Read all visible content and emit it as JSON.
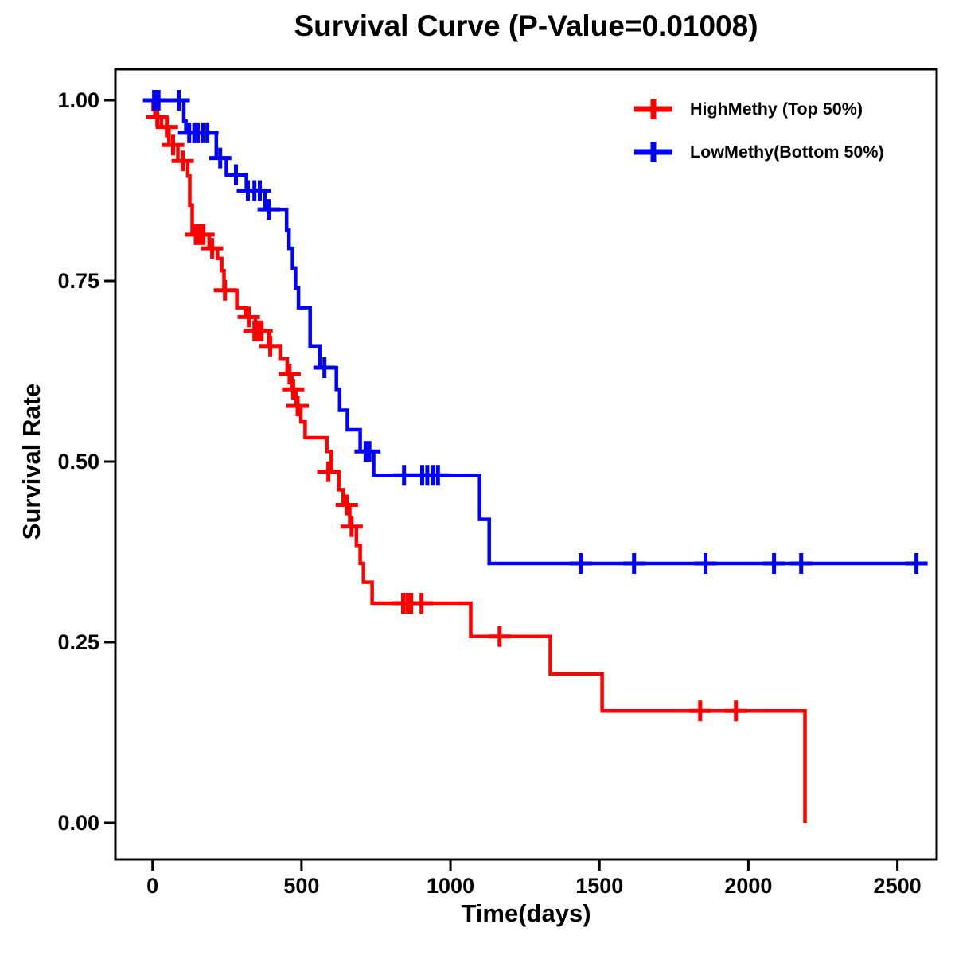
{
  "title": "Survival Curve (P-Value=0.01008)",
  "legend": {
    "items": [
      {
        "label": "HighMethy (Top 50%)",
        "color": "#FF0000"
      },
      {
        "label": "LowMethy(Bottom 50%)",
        "color": "#0000FF"
      }
    ]
  },
  "chart_data": {
    "type": "line",
    "subtype": "kaplan-meier-step",
    "title": "Survival Curve (P-Value=0.01008)",
    "p_value": 0.01008,
    "xlabel": "Time(days)",
    "ylabel": "Survival Rate",
    "xlim": [
      0,
      2630
    ],
    "ylim": [
      0,
      1.0
    ],
    "grid": false,
    "legend_position": "top-right",
    "x_ticks": {
      "values": [
        0,
        500,
        1000,
        1500,
        2000,
        2500
      ],
      "labels": [
        "0",
        "500",
        "1000",
        "1500",
        "2000",
        "2500"
      ]
    },
    "y_ticks": {
      "values": [
        0,
        0.25,
        0.5,
        0.75,
        1.0
      ],
      "labels": [
        "0.00",
        "0.25",
        "0.50",
        "0.75",
        "1.00"
      ]
    },
    "series": [
      {
        "name": "HighMethy (Top 50%)",
        "color": "#FF0000",
        "steps": [
          [
            0,
            1.0
          ],
          [
            2,
            0.987
          ],
          [
            8,
            0.977
          ],
          [
            30,
            0.963
          ],
          [
            55,
            0.938
          ],
          [
            85,
            0.916
          ],
          [
            118,
            0.895
          ],
          [
            125,
            0.855
          ],
          [
            133,
            0.814
          ],
          [
            190,
            0.795
          ],
          [
            218,
            0.781
          ],
          [
            232,
            0.764
          ],
          [
            240,
            0.737
          ],
          [
            283,
            0.713
          ],
          [
            312,
            0.7
          ],
          [
            345,
            0.681
          ],
          [
            390,
            0.66
          ],
          [
            428,
            0.643
          ],
          [
            452,
            0.621
          ],
          [
            468,
            0.6
          ],
          [
            482,
            0.577
          ],
          [
            498,
            0.555
          ],
          [
            512,
            0.533
          ],
          [
            585,
            0.514
          ],
          [
            600,
            0.486
          ],
          [
            625,
            0.461
          ],
          [
            640,
            0.44
          ],
          [
            662,
            0.41
          ],
          [
            684,
            0.384
          ],
          [
            697,
            0.359
          ],
          [
            708,
            0.333
          ],
          [
            737,
            0.304
          ],
          [
            1068,
            0.258
          ],
          [
            1335,
            0.206
          ],
          [
            1509,
            0.155
          ],
          [
            2190,
            0.0
          ]
        ],
        "censor_marks": [
          [
            16,
            0.977
          ],
          [
            48,
            0.963
          ],
          [
            69,
            0.938
          ],
          [
            101,
            0.916
          ],
          [
            145,
            0.814
          ],
          [
            158,
            0.814
          ],
          [
            171,
            0.814
          ],
          [
            200,
            0.795
          ],
          [
            243,
            0.737
          ],
          [
            323,
            0.7
          ],
          [
            342,
            0.681
          ],
          [
            354,
            0.681
          ],
          [
            366,
            0.681
          ],
          [
            395,
            0.66
          ],
          [
            460,
            0.621
          ],
          [
            472,
            0.6
          ],
          [
            487,
            0.577
          ],
          [
            590,
            0.486
          ],
          [
            652,
            0.44
          ],
          [
            668,
            0.41
          ],
          [
            841,
            0.304
          ],
          [
            855,
            0.304
          ],
          [
            868,
            0.304
          ],
          [
            903,
            0.304
          ],
          [
            1165,
            0.258
          ],
          [
            1838,
            0.155
          ],
          [
            1958,
            0.155
          ]
        ],
        "end_time": 2190,
        "ends_at_zero": true
      },
      {
        "name": "LowMethy(Bottom 50%)",
        "color": "#0000FF",
        "steps": [
          [
            0,
            1.0
          ],
          [
            105,
            0.971
          ],
          [
            112,
            0.955
          ],
          [
            214,
            0.92
          ],
          [
            248,
            0.897
          ],
          [
            315,
            0.875
          ],
          [
            377,
            0.849
          ],
          [
            450,
            0.82
          ],
          [
            458,
            0.795
          ],
          [
            470,
            0.768
          ],
          [
            480,
            0.74
          ],
          [
            490,
            0.713
          ],
          [
            529,
            0.66
          ],
          [
            561,
            0.63
          ],
          [
            617,
            0.6
          ],
          [
            628,
            0.571
          ],
          [
            654,
            0.544
          ],
          [
            697,
            0.514
          ],
          [
            742,
            0.481
          ],
          [
            1098,
            0.42
          ],
          [
            1130,
            0.359
          ]
        ],
        "censor_marks": [
          [
            5,
            1.0
          ],
          [
            12,
            1.0
          ],
          [
            20,
            1.0
          ],
          [
            88,
            1.0
          ],
          [
            123,
            0.955
          ],
          [
            140,
            0.955
          ],
          [
            152,
            0.955
          ],
          [
            168,
            0.955
          ],
          [
            184,
            0.955
          ],
          [
            227,
            0.92
          ],
          [
            280,
            0.897
          ],
          [
            320,
            0.875
          ],
          [
            342,
            0.875
          ],
          [
            360,
            0.875
          ],
          [
            390,
            0.849
          ],
          [
            577,
            0.63
          ],
          [
            715,
            0.514
          ],
          [
            728,
            0.514
          ],
          [
            844,
            0.481
          ],
          [
            905,
            0.481
          ],
          [
            922,
            0.481
          ],
          [
            940,
            0.481
          ],
          [
            958,
            0.481
          ],
          [
            1437,
            0.359
          ],
          [
            1616,
            0.359
          ],
          [
            1856,
            0.359
          ],
          [
            2086,
            0.359
          ],
          [
            2177,
            0.359
          ],
          [
            2564,
            0.359
          ]
        ],
        "end_time": 2590,
        "ends_at_zero": false
      }
    ]
  }
}
